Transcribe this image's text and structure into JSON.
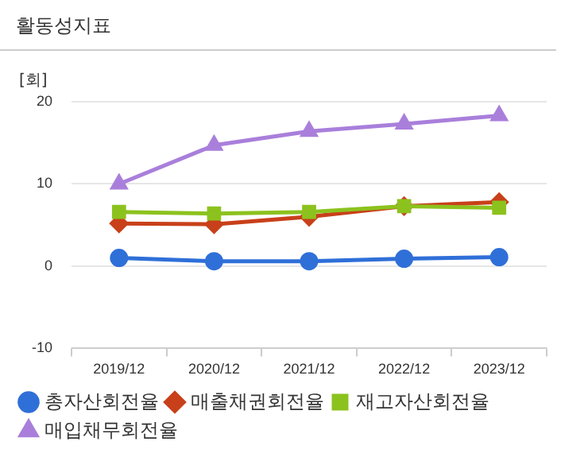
{
  "chart_data": {
    "type": "line",
    "title": "활동성지표",
    "ylabel": "[회]",
    "categories": [
      "2019/12",
      "2020/12",
      "2021/12",
      "2022/12",
      "2023/12"
    ],
    "series": [
      {
        "name": "총자산회전율",
        "color": "#2f6fd8",
        "marker": "circle",
        "values": [
          1.0,
          0.6,
          0.6,
          0.9,
          1.1
        ]
      },
      {
        "name": "매출채권회전율",
        "color": "#c8401a",
        "marker": "diamond",
        "values": [
          5.2,
          5.1,
          6.0,
          7.3,
          7.8
        ]
      },
      {
        "name": "재고자산회전율",
        "color": "#8cc21e",
        "marker": "square",
        "values": [
          6.6,
          6.4,
          6.6,
          7.3,
          7.1
        ]
      },
      {
        "name": "매입채무회전율",
        "color": "#a97fdb",
        "marker": "triangle",
        "values": [
          10.0,
          14.7,
          16.4,
          17.3,
          18.3
        ]
      }
    ],
    "ylim": [
      -10,
      20
    ],
    "yticks": [
      -10,
      0,
      10,
      20
    ],
    "grid": "y",
    "legend": "bottom"
  }
}
